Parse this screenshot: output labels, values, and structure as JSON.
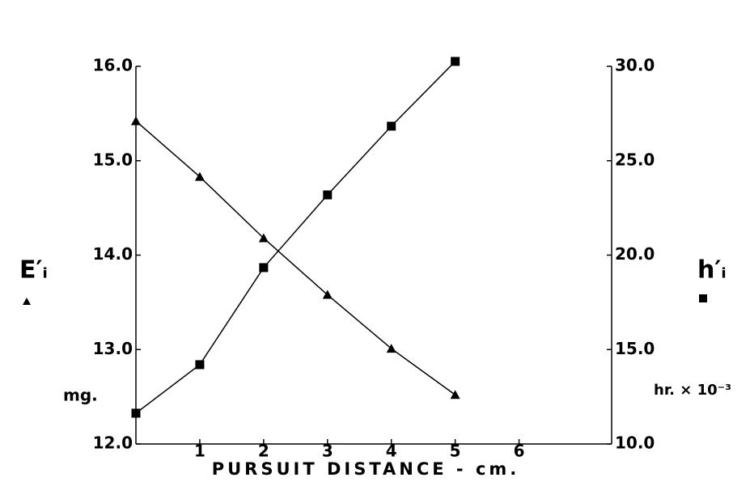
{
  "chart_data": {
    "type": "line",
    "x_label": "PURSUIT DISTANCE - cm.",
    "y_label": "E′ᵢ",
    "y_unit": "mg.",
    "y2_label": "h′ᵢ",
    "y2_unit": "hr. × 10⁻³",
    "x": [
      0,
      1,
      2,
      3,
      4,
      5
    ],
    "series": [
      {
        "name": "E′ᵢ",
        "marker": "triangle",
        "color": "#000000",
        "values": [
          15.42,
          14.83,
          14.18,
          13.58,
          13.01,
          12.52
        ]
      },
      {
        "name": "h′ᵢ",
        "marker": "square",
        "color": "#000000",
        "axis": "y2",
        "values": [
          11.63,
          14.2,
          19.34,
          23.19,
          26.83,
          30.26
        ]
      }
    ],
    "xlim": [
      0,
      7.45
    ],
    "xticks": [
      1,
      2,
      3,
      4,
      5,
      6
    ],
    "ylim": [
      12,
      16
    ],
    "yticks": [
      {
        "value": 12,
        "label": "12.0"
      },
      {
        "value": 13,
        "label": "13.0"
      },
      {
        "value": 14,
        "label": "14.0"
      },
      {
        "value": 15,
        "label": "15.0"
      },
      {
        "value": 16,
        "label": "16.0"
      }
    ],
    "y2lim": [
      10,
      30
    ],
    "y2ticks": [
      {
        "value": 10,
        "label": "10.0"
      },
      {
        "value": 15,
        "label": "15.0"
      },
      {
        "value": 20,
        "label": "20.0"
      },
      {
        "value": 25,
        "label": "25.0"
      },
      {
        "value": 30,
        "label": "30.0"
      }
    ],
    "grid": false
  }
}
